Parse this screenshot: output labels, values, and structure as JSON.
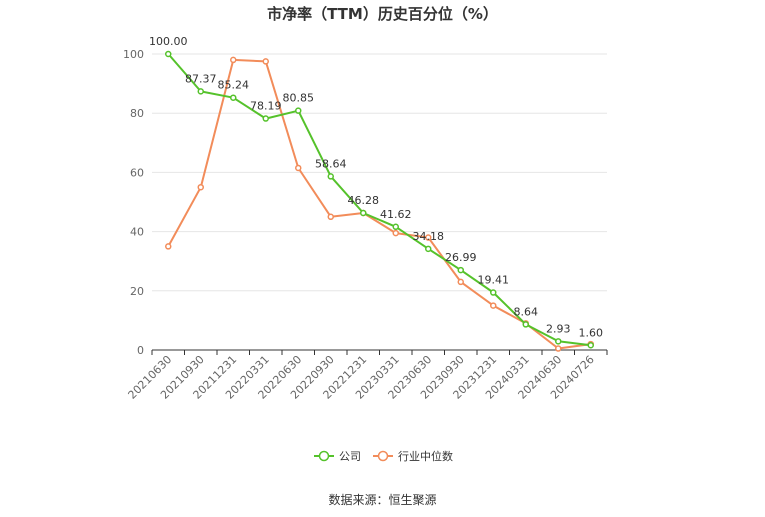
{
  "title": "市净率（TTM）历史百分位（%）",
  "source": "数据来源：恒生聚源",
  "colors": {
    "company": "#55c22b",
    "industry": "#f28c5a",
    "grid": "#e6e6e6",
    "axis": "#333333"
  },
  "chart_data": {
    "type": "line",
    "title": "市净率（TTM）历史百分位（%）",
    "categories": [
      "20210630",
      "20210930",
      "20211231",
      "20220331",
      "20220630",
      "20220930",
      "20221231",
      "20230331",
      "20230630",
      "20230930",
      "20231231",
      "20240331",
      "20240630",
      "20240726"
    ],
    "ylim": [
      0,
      100
    ],
    "yticks": [
      0,
      20,
      40,
      60,
      80,
      100
    ],
    "grid": true,
    "legend": "bottom-center",
    "series": [
      {
        "name": "公司",
        "values": [
          100.0,
          87.37,
          85.24,
          78.19,
          80.85,
          58.64,
          46.28,
          41.62,
          34.18,
          26.99,
          19.41,
          8.64,
          2.93,
          1.6
        ],
        "labels": [
          "100.00",
          "87.37",
          "85.24",
          "78.19",
          "80.85",
          "58.64",
          "46.28",
          "41.62",
          "34.18",
          "26.99",
          "19.41",
          "8.64",
          "2.93",
          "1.60"
        ]
      },
      {
        "name": "行业中位数",
        "values": [
          35,
          55,
          98,
          97.5,
          61.5,
          45,
          46.3,
          39.5,
          38,
          23,
          15,
          9,
          0.5,
          2
        ]
      }
    ]
  }
}
